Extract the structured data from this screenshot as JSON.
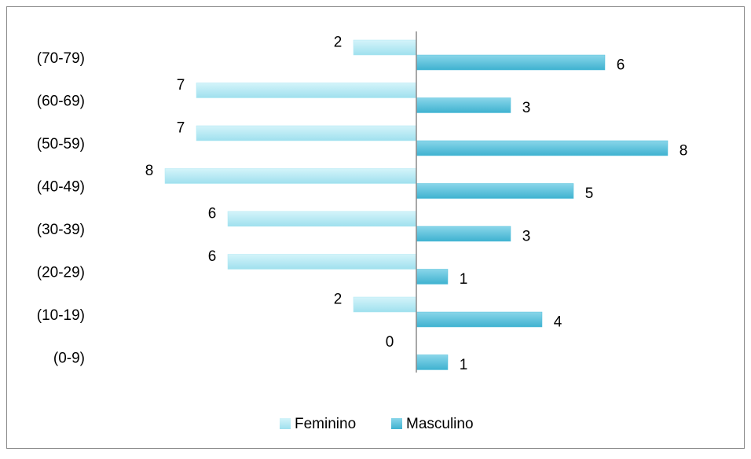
{
  "chart_data": {
    "type": "bar",
    "orientation": "pyramid",
    "categories": [
      "(70-79)",
      "(60-69)",
      "(50-59)",
      "(40-49)",
      "(30-39)",
      "(20-29)",
      "(10-19)",
      "(0-9)"
    ],
    "series": [
      {
        "name": "Feminino",
        "color": "#aee8f3",
        "values": [
          2,
          7,
          7,
          8,
          6,
          6,
          2,
          0
        ]
      },
      {
        "name": "Masculino",
        "color": "#52c0dc",
        "values": [
          6,
          3,
          8,
          5,
          3,
          1,
          4,
          1
        ]
      }
    ],
    "legend": "bottom"
  }
}
